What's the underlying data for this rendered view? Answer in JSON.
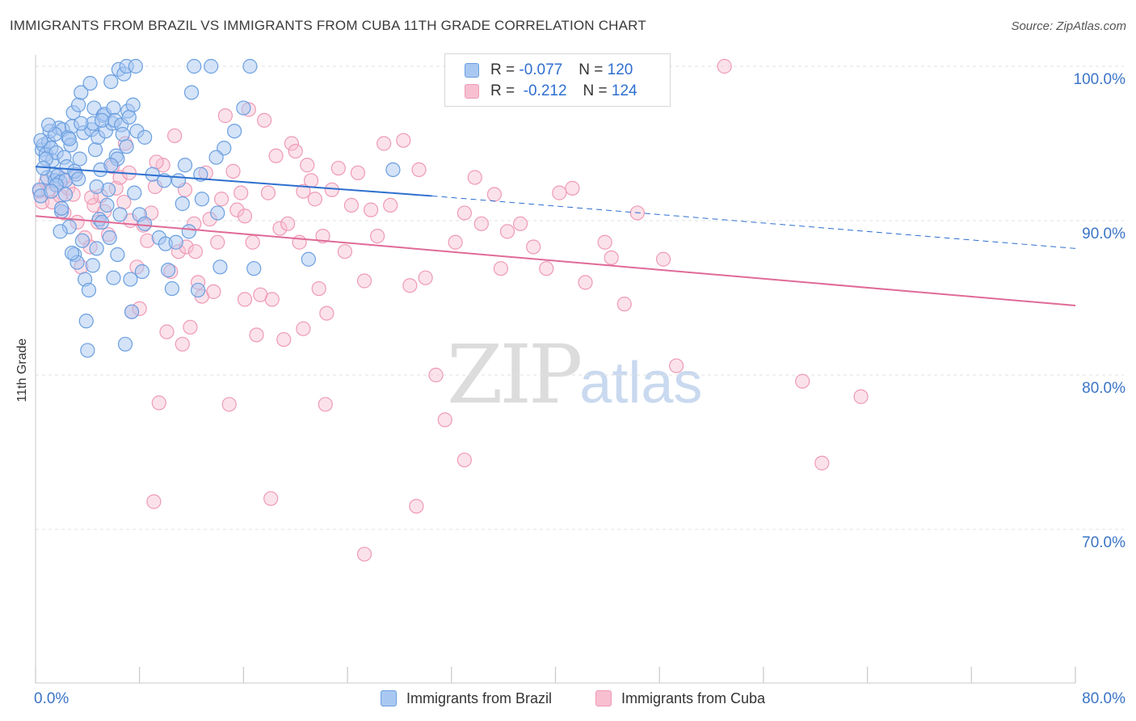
{
  "title": "IMMIGRANTS FROM BRAZIL VS IMMIGRANTS FROM CUBA 11TH GRADE CORRELATION CHART",
  "source": "Source: ZipAtlas.com",
  "watermark": {
    "zip": "ZIP",
    "atlas": "atlas"
  },
  "colors": {
    "brazil_fill": "#a9c8f1",
    "brazil_stroke": "#6a9fe0",
    "brazil_line": "#2d6fcf",
    "cuba_fill": "#f7bfd0",
    "cuba_stroke": "#ef9ab5",
    "cuba_line": "#e06a97",
    "tick_label": "#3b74c6",
    "grid": "#e2e2e2"
  },
  "legend": {
    "rows": [
      {
        "r_label": "R = ",
        "r_value": "-0.077",
        "n_label": "N = ",
        "n_value": "120"
      },
      {
        "r_label": "R = ",
        "r_value": " -0.212",
        "n_label": "N = ",
        "n_value": "124"
      }
    ]
  },
  "chart_data": {
    "type": "scatter",
    "title": "IMMIGRANTS FROM BRAZIL VS IMMIGRANTS FROM CUBA 11TH GRADE CORRELATION CHART",
    "xlabel": "",
    "ylabel": "11th Grade",
    "xlim": [
      0,
      80
    ],
    "ylim": [
      60,
      101.5
    ],
    "x_tick_labels": [
      "0.0%",
      "80.0%"
    ],
    "y_ticks": [
      100,
      90,
      80,
      70
    ],
    "y_tick_labels": [
      "100.0%",
      "90.0%",
      "80.0%",
      "70.0%"
    ],
    "grid": "horizontal dashed",
    "legend_position": "top-center",
    "series": [
      {
        "name": "Immigrants from Brazil",
        "r": -0.077,
        "n": 120,
        "trend": {
          "x_start": 0,
          "y_start": 93.5,
          "x_end": 30.5,
          "y_end": 91.6,
          "dashed_to_x": 80,
          "dashed_to_y": 88.2
        },
        "points": [
          [
            0.3,
            92
          ],
          [
            0.4,
            91.6
          ],
          [
            0.5,
            94.6
          ],
          [
            0.6,
            94.9
          ],
          [
            0.8,
            94.3
          ],
          [
            0.9,
            92.8
          ],
          [
            1.0,
            95.1
          ],
          [
            1.1,
            95.8
          ],
          [
            1.2,
            94.7
          ],
          [
            1.3,
            93.9
          ],
          [
            1.4,
            93.0
          ],
          [
            1.5,
            92.6
          ],
          [
            1.6,
            94.4
          ],
          [
            1.7,
            92.9
          ],
          [
            1.8,
            96.0
          ],
          [
            1.9,
            92.5
          ],
          [
            2.0,
            90.6
          ],
          [
            2.1,
            95.9
          ],
          [
            2.2,
            94.1
          ],
          [
            2.3,
            92.6
          ],
          [
            2.4,
            93.5
          ],
          [
            2.5,
            95.4
          ],
          [
            2.6,
            89.6
          ],
          [
            2.7,
            94.9
          ],
          [
            2.8,
            96.1
          ],
          [
            2.9,
            97.0
          ],
          [
            3.0,
            87.8
          ],
          [
            3.1,
            93.0
          ],
          [
            3.2,
            87.3
          ],
          [
            3.3,
            97.5
          ],
          [
            3.4,
            94.0
          ],
          [
            3.5,
            98.3
          ],
          [
            3.6,
            88.7
          ],
          [
            3.7,
            95.7
          ],
          [
            3.8,
            86.2
          ],
          [
            3.9,
            83.5
          ],
          [
            4.0,
            81.6
          ],
          [
            4.1,
            85.5
          ],
          [
            4.2,
            98.9
          ],
          [
            4.3,
            95.9
          ],
          [
            4.4,
            96.3
          ],
          [
            4.5,
            97.3
          ],
          [
            4.6,
            94.6
          ],
          [
            4.7,
            88.2
          ],
          [
            4.8,
            95.4
          ],
          [
            4.9,
            90.1
          ],
          [
            5.0,
            93.3
          ],
          [
            5.1,
            89.9
          ],
          [
            5.2,
            96.8
          ],
          [
            5.3,
            96.9
          ],
          [
            5.4,
            95.8
          ],
          [
            5.5,
            91.0
          ],
          [
            5.6,
            92.0
          ],
          [
            5.7,
            88.9
          ],
          [
            5.8,
            99.0
          ],
          [
            5.9,
            96.3
          ],
          [
            6.0,
            97.3
          ],
          [
            6.1,
            96.5
          ],
          [
            6.2,
            94.2
          ],
          [
            6.3,
            87.8
          ],
          [
            6.4,
            99.8
          ],
          [
            6.5,
            90.4
          ],
          [
            6.6,
            96.2
          ],
          [
            6.7,
            95.6
          ],
          [
            6.8,
            99.5
          ],
          [
            6.9,
            82.0
          ],
          [
            7.0,
            100.0
          ],
          [
            7.1,
            97.1
          ],
          [
            7.2,
            96.7
          ],
          [
            7.3,
            86.2
          ],
          [
            7.4,
            84.1
          ],
          [
            7.5,
            97.5
          ],
          [
            7.7,
            100.0
          ],
          [
            7.8,
            95.8
          ],
          [
            8.0,
            90.4
          ],
          [
            8.2,
            86.7
          ],
          [
            8.4,
            89.8
          ],
          [
            9.0,
            93.0
          ],
          [
            9.5,
            88.9
          ],
          [
            10.0,
            88.5
          ],
          [
            10.2,
            86.8
          ],
          [
            10.5,
            85.6
          ],
          [
            11.0,
            92.6
          ],
          [
            11.5,
            93.6
          ],
          [
            11.8,
            89.3
          ],
          [
            12.0,
            98.3
          ],
          [
            12.2,
            100.0
          ],
          [
            12.5,
            85.5
          ],
          [
            12.7,
            93.0
          ],
          [
            13.5,
            100.0
          ],
          [
            14.0,
            90.5
          ],
          [
            14.2,
            87.0
          ],
          [
            14.5,
            94.7
          ],
          [
            15.3,
            95.8
          ],
          [
            16.0,
            97.3
          ],
          [
            16.5,
            100.0
          ],
          [
            16.8,
            86.9
          ],
          [
            21.0,
            87.5
          ],
          [
            27.5,
            93.3
          ],
          [
            3.0,
            93.2
          ],
          [
            1.5,
            95.6
          ],
          [
            2.3,
            91.7
          ],
          [
            6.0,
            86.3
          ],
          [
            0.8,
            94.0
          ],
          [
            1.6,
            92.3
          ],
          [
            9.9,
            92.6
          ],
          [
            3.5,
            96.3
          ],
          [
            5.1,
            96.5
          ],
          [
            2.8,
            87.9
          ],
          [
            4.4,
            87.1
          ],
          [
            0.6,
            93.4
          ],
          [
            1.2,
            91.9
          ],
          [
            2.0,
            90.8
          ],
          [
            4.7,
            92.2
          ],
          [
            6.3,
            94.0
          ],
          [
            7.6,
            91.8
          ],
          [
            10.8,
            88.6
          ],
          [
            12.8,
            91.4
          ],
          [
            3.3,
            92.7
          ],
          [
            2.6,
            95.3
          ],
          [
            1.0,
            96.2
          ],
          [
            5.8,
            93.6
          ],
          [
            7.0,
            94.8
          ],
          [
            8.4,
            95.4
          ],
          [
            11.3,
            91.1
          ],
          [
            13.9,
            94.1
          ],
          [
            0.4,
            95.2
          ],
          [
            1.9,
            89.3
          ]
        ]
      },
      {
        "name": "Immigrants from Cuba",
        "r": -0.212,
        "n": 124,
        "trend": {
          "x_start": 0,
          "y_start": 90.3,
          "x_end": 80,
          "y_end": 84.5
        },
        "points": [
          [
            0.3,
            91.9
          ],
          [
            0.5,
            91.2
          ],
          [
            0.8,
            92.5
          ],
          [
            1.0,
            91.9
          ],
          [
            1.3,
            91.2
          ],
          [
            1.6,
            92.3
          ],
          [
            1.9,
            91.6
          ],
          [
            2.2,
            90.5
          ],
          [
            2.5,
            92.1
          ],
          [
            2.9,
            91.7
          ],
          [
            3.2,
            89.9
          ],
          [
            3.5,
            87.0
          ],
          [
            3.8,
            88.9
          ],
          [
            4.2,
            88.3
          ],
          [
            4.5,
            91.0
          ],
          [
            4.8,
            89.9
          ],
          [
            5.0,
            91.6
          ],
          [
            5.3,
            90.6
          ],
          [
            5.6,
            89.1
          ],
          [
            5.9,
            93.5
          ],
          [
            6.2,
            92.1
          ],
          [
            6.5,
            92.8
          ],
          [
            6.9,
            95.0
          ],
          [
            7.2,
            93.1
          ],
          [
            7.4,
            84.1
          ],
          [
            7.8,
            87.0
          ],
          [
            8.0,
            84.3
          ],
          [
            8.3,
            89.7
          ],
          [
            8.6,
            88.7
          ],
          [
            8.9,
            90.5
          ],
          [
            9.2,
            92.2
          ],
          [
            9.5,
            78.2
          ],
          [
            9.8,
            93.6
          ],
          [
            10.1,
            82.8
          ],
          [
            10.4,
            86.7
          ],
          [
            10.7,
            95.5
          ],
          [
            11.0,
            88.0
          ],
          [
            11.3,
            82.0
          ],
          [
            11.6,
            88.3
          ],
          [
            11.9,
            83.1
          ],
          [
            12.2,
            89.8
          ],
          [
            12.5,
            86.0
          ],
          [
            12.8,
            85.1
          ],
          [
            13.1,
            93.1
          ],
          [
            13.4,
            90.1
          ],
          [
            13.7,
            85.4
          ],
          [
            14.0,
            88.6
          ],
          [
            14.3,
            91.4
          ],
          [
            14.6,
            96.8
          ],
          [
            14.9,
            78.1
          ],
          [
            15.2,
            93.2
          ],
          [
            15.5,
            90.7
          ],
          [
            15.8,
            91.8
          ],
          [
            16.1,
            84.9
          ],
          [
            16.4,
            97.2
          ],
          [
            16.7,
            88.6
          ],
          [
            17.0,
            82.6
          ],
          [
            17.3,
            85.2
          ],
          [
            17.6,
            96.5
          ],
          [
            17.9,
            91.8
          ],
          [
            18.2,
            84.9
          ],
          [
            18.5,
            94.2
          ],
          [
            18.8,
            89.5
          ],
          [
            19.1,
            82.3
          ],
          [
            19.4,
            89.8
          ],
          [
            19.7,
            95.0
          ],
          [
            20.0,
            94.5
          ],
          [
            20.3,
            88.6
          ],
          [
            20.6,
            83.0
          ],
          [
            20.9,
            93.6
          ],
          [
            21.2,
            92.6
          ],
          [
            21.5,
            91.4
          ],
          [
            21.8,
            85.6
          ],
          [
            22.1,
            89.0
          ],
          [
            22.4,
            84.0
          ],
          [
            22.8,
            92.0
          ],
          [
            23.3,
            93.4
          ],
          [
            23.8,
            88.0
          ],
          [
            24.3,
            91.0
          ],
          [
            24.8,
            93.1
          ],
          [
            25.3,
            86.1
          ],
          [
            25.8,
            90.7
          ],
          [
            26.3,
            89.0
          ],
          [
            26.8,
            95.0
          ],
          [
            27.3,
            91.0
          ],
          [
            28.3,
            95.2
          ],
          [
            28.8,
            85.8
          ],
          [
            29.5,
            93.3
          ],
          [
            30.0,
            86.3
          ],
          [
            30.8,
            80.0
          ],
          [
            31.5,
            77.1
          ],
          [
            32.3,
            88.6
          ],
          [
            33.0,
            90.5
          ],
          [
            33.8,
            92.8
          ],
          [
            34.3,
            89.8
          ],
          [
            35.3,
            91.7
          ],
          [
            35.8,
            86.9
          ],
          [
            36.3,
            89.3
          ],
          [
            37.3,
            89.8
          ],
          [
            38.3,
            88.3
          ],
          [
            39.3,
            86.9
          ],
          [
            40.3,
            91.8
          ],
          [
            41.3,
            92.1
          ],
          [
            42.3,
            86.0
          ],
          [
            43.8,
            88.6
          ],
          [
            44.3,
            87.6
          ],
          [
            45.3,
            84.6
          ],
          [
            46.3,
            90.5
          ],
          [
            48.3,
            87.5
          ],
          [
            49.3,
            80.6
          ],
          [
            53.0,
            100.0
          ],
          [
            59.0,
            79.6
          ],
          [
            60.5,
            74.3
          ],
          [
            63.5,
            78.6
          ],
          [
            33.0,
            74.5
          ],
          [
            29.3,
            71.5
          ],
          [
            18.1,
            72.0
          ],
          [
            9.1,
            71.8
          ],
          [
            25.3,
            68.4
          ],
          [
            22.3,
            78.1
          ],
          [
            11.5,
            92.0
          ],
          [
            3.1,
            93.0
          ],
          [
            6.8,
            91.2
          ],
          [
            9.3,
            93.8
          ],
          [
            12.3,
            88.0
          ],
          [
            16.1,
            90.3
          ],
          [
            20.6,
            91.9
          ],
          [
            2.1,
            92.7
          ],
          [
            4.3,
            91.5
          ],
          [
            7.3,
            90.0
          ]
        ]
      }
    ]
  },
  "bottom_legend": {
    "brazil": "Immigrants from Brazil",
    "cuba": "Immigrants from Cuba"
  }
}
